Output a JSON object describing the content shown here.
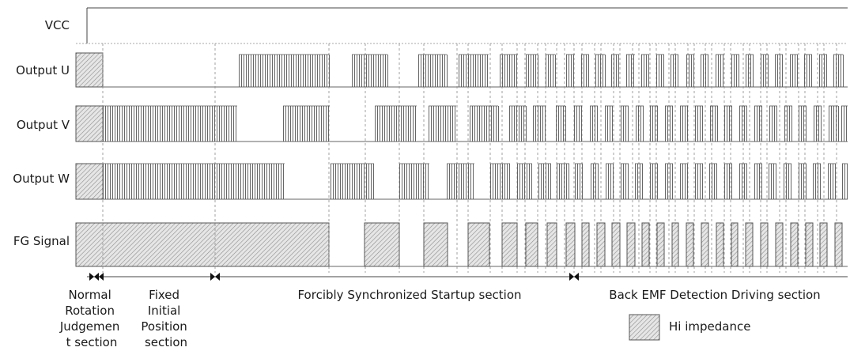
{
  "signals": [
    {
      "key": "vcc",
      "label": "VCC"
    },
    {
      "key": "u",
      "label": "Output U"
    },
    {
      "key": "v",
      "label": "Output V"
    },
    {
      "key": "w",
      "label": "Output W"
    },
    {
      "key": "fg",
      "label": "FG Signal"
    }
  ],
  "sections": {
    "normal_rotation": [
      "Normal",
      "Rotation",
      "Judgemen",
      "t section"
    ],
    "fixed_initial": [
      "Fixed",
      "Initial",
      "Position",
      "section"
    ],
    "forcibly_sync": "Forcibly Synchronized Startup section",
    "back_emf": "Back EMF Detection Driving section"
  },
  "legend": {
    "label": "Hi impedance"
  },
  "colors": {
    "line": "#444444",
    "pulse": "#555555",
    "hatch_bg": "#e6e6e6",
    "hatch_line": "#8c8c8c"
  }
}
